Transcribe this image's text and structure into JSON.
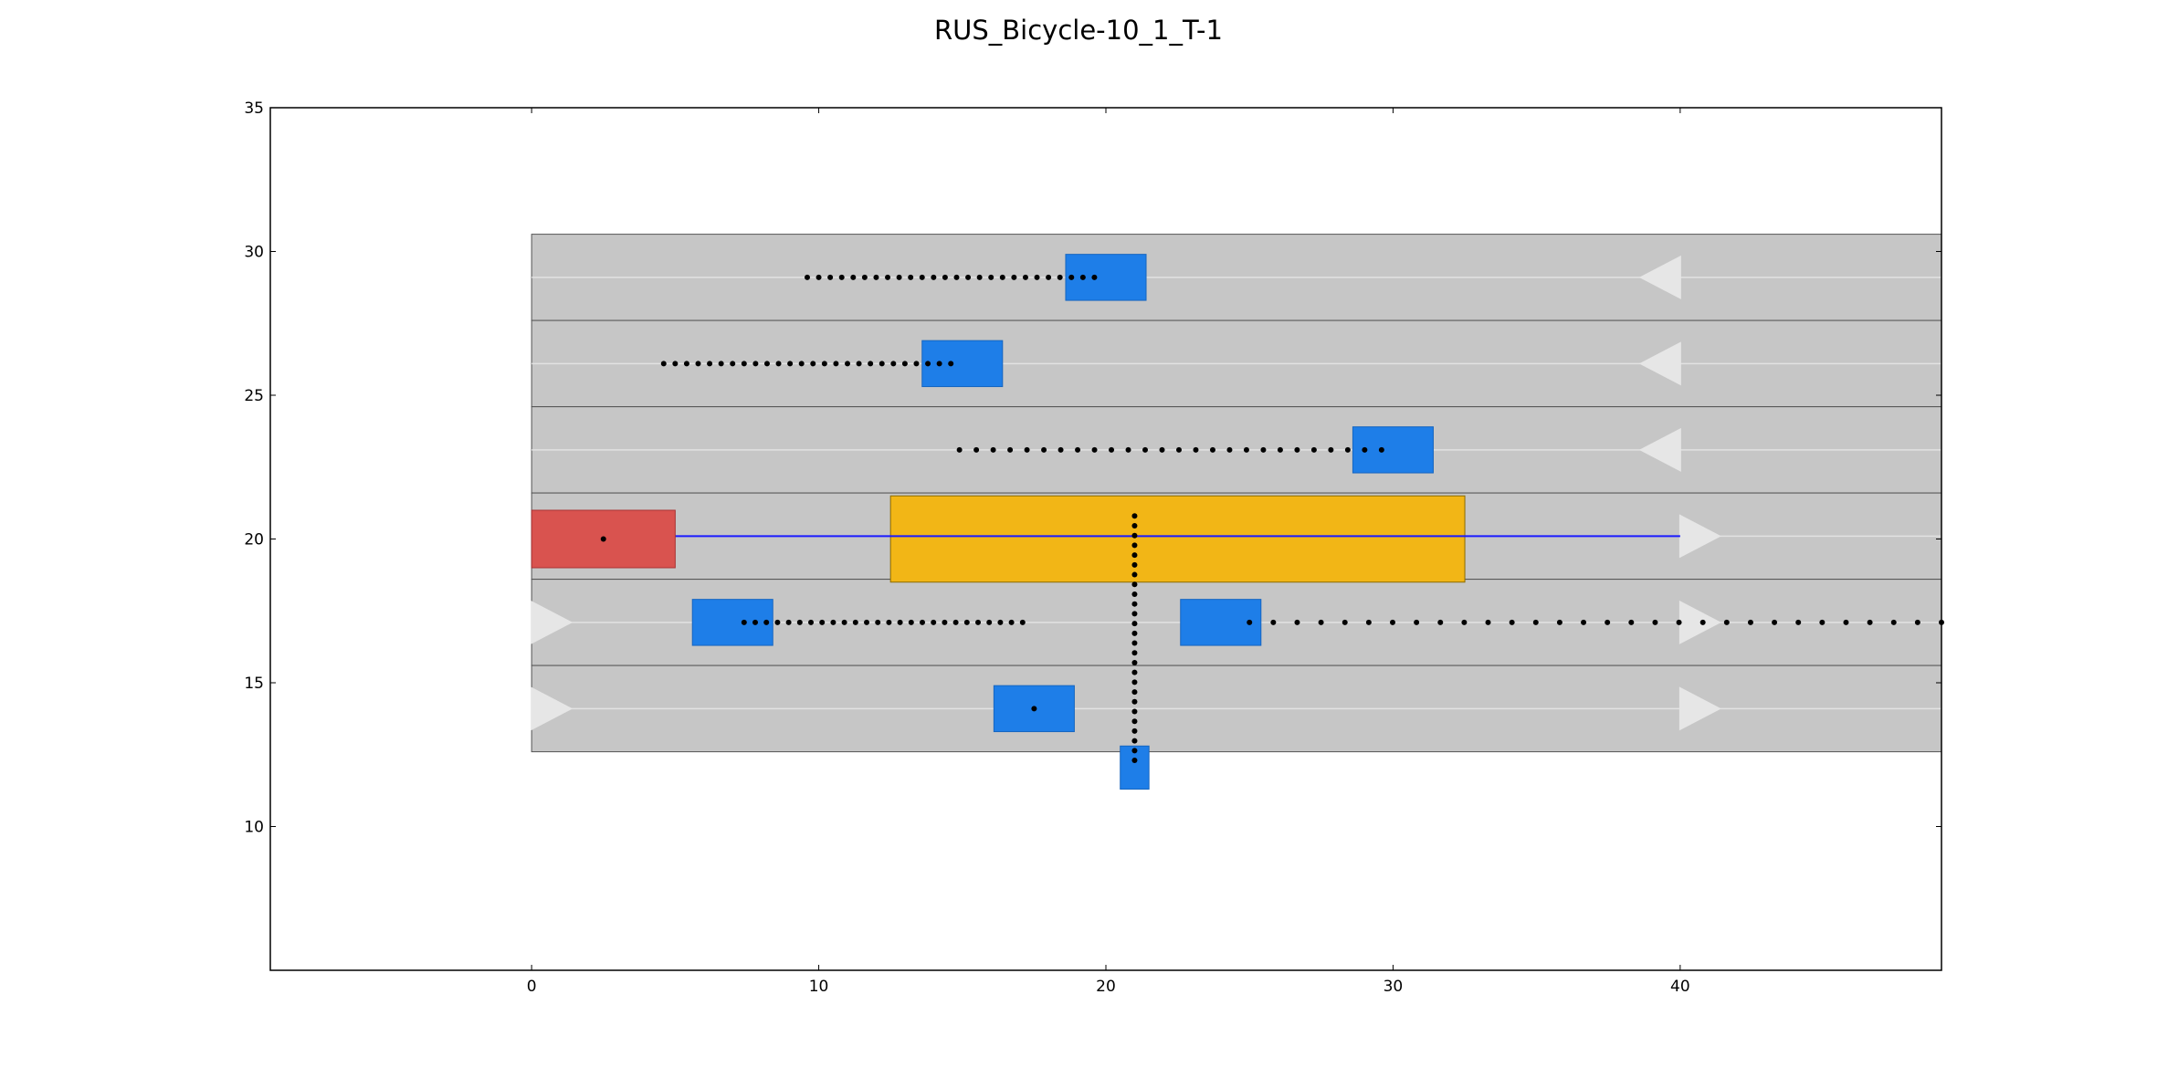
{
  "chart_data": {
    "type": "scatter",
    "title": "RUS_Bicycle-10_1_T-1",
    "xlabel": "",
    "ylabel": "",
    "xlim": [
      -9.1,
      49.1
    ],
    "ylim": [
      5.0,
      35.0
    ],
    "xticks": [
      0,
      10,
      20,
      30,
      40
    ],
    "yticks": [
      10,
      15,
      20,
      25,
      30,
      35
    ],
    "grid": false,
    "colors": {
      "road": "#c6c6c6",
      "lane_divider": "#555555",
      "lane_center": "#e2e2e2",
      "direction_arrow": "#e6e6e6",
      "ego_vehicle": "#d9534f",
      "ego_route": "#1a1aff",
      "goal_region": "#f2b616",
      "obstacle": "#1e7ee8",
      "trajectory": "#000000"
    },
    "road": {
      "x_range": [
        0,
        49.1
      ],
      "lanes": [
        {
          "y_min": 27.6,
          "y_max": 30.6,
          "center": 29.1,
          "direction": "left"
        },
        {
          "y_min": 24.6,
          "y_max": 27.6,
          "center": 26.1,
          "direction": "left"
        },
        {
          "y_min": 21.6,
          "y_max": 24.6,
          "center": 23.1,
          "direction": "left"
        },
        {
          "y_min": 18.6,
          "y_max": 21.6,
          "center": 20.1,
          "direction": "right"
        },
        {
          "y_min": 15.6,
          "y_max": 18.6,
          "center": 17.1,
          "direction": "right"
        },
        {
          "y_min": 12.6,
          "y_max": 15.6,
          "center": 14.1,
          "direction": "right"
        }
      ],
      "arrows": [
        {
          "x": 39.3,
          "y": 29.1,
          "direction": "left"
        },
        {
          "x": 39.3,
          "y": 26.1,
          "direction": "left"
        },
        {
          "x": 39.3,
          "y": 23.1,
          "direction": "left"
        },
        {
          "x": 40.7,
          "y": 20.1,
          "direction": "right"
        },
        {
          "x": 0.7,
          "y": 17.1,
          "direction": "right"
        },
        {
          "x": 40.7,
          "y": 17.1,
          "direction": "right"
        },
        {
          "x": 0.7,
          "y": 14.1,
          "direction": "right"
        },
        {
          "x": 40.7,
          "y": 14.1,
          "direction": "right"
        }
      ]
    },
    "ego_vehicle": {
      "x_min": 0.0,
      "x_max": 5.0,
      "y_min": 19.0,
      "y_max": 21.0,
      "center": [
        2.5,
        20.0
      ]
    },
    "ego_route": {
      "x": [
        0.0,
        40.0
      ],
      "y": [
        20.1,
        20.1
      ]
    },
    "goal_region": {
      "x_min": 12.5,
      "x_max": 32.5,
      "y_min": 18.5,
      "y_max": 21.5
    },
    "obstacles": [
      {
        "x_min": 18.6,
        "x_max": 21.4,
        "y_min": 28.3,
        "y_max": 29.9
      },
      {
        "x_min": 13.6,
        "x_max": 16.4,
        "y_min": 25.3,
        "y_max": 26.9
      },
      {
        "x_min": 28.6,
        "x_max": 31.4,
        "y_min": 22.3,
        "y_max": 23.9
      },
      {
        "x_min": 5.6,
        "x_max": 8.4,
        "y_min": 16.3,
        "y_max": 17.9
      },
      {
        "x_min": 22.6,
        "x_max": 25.4,
        "y_min": 16.3,
        "y_max": 17.9
      },
      {
        "x_min": 16.1,
        "x_max": 18.9,
        "y_min": 13.3,
        "y_max": 14.9
      },
      {
        "x_min": 20.5,
        "x_max": 21.5,
        "y_min": 11.3,
        "y_max": 12.8
      }
    ],
    "trajectories": [
      {
        "x_start": 9.6,
        "x_end": 19.6,
        "y_start": 29.1,
        "y_end": 29.1,
        "points": 26
      },
      {
        "x_start": 4.6,
        "x_end": 14.6,
        "y_start": 26.1,
        "y_end": 26.1,
        "points": 26
      },
      {
        "x_start": 14.9,
        "x_end": 29.6,
        "y_start": 23.1,
        "y_end": 23.1,
        "points": 26
      },
      {
        "x_start": 7.4,
        "x_end": 17.1,
        "y_start": 17.1,
        "y_end": 17.1,
        "points": 26
      },
      {
        "x_start": 25.0,
        "x_end": 49.1,
        "y_start": 17.1,
        "y_end": 17.1,
        "points": 30
      },
      {
        "x_start": 21.0,
        "x_end": 21.0,
        "y_start": 20.8,
        "y_end": 12.3,
        "points": 26
      }
    ],
    "single_points": [
      {
        "x": 2.5,
        "y": 20.0
      },
      {
        "x": 17.5,
        "y": 14.1
      }
    ]
  }
}
